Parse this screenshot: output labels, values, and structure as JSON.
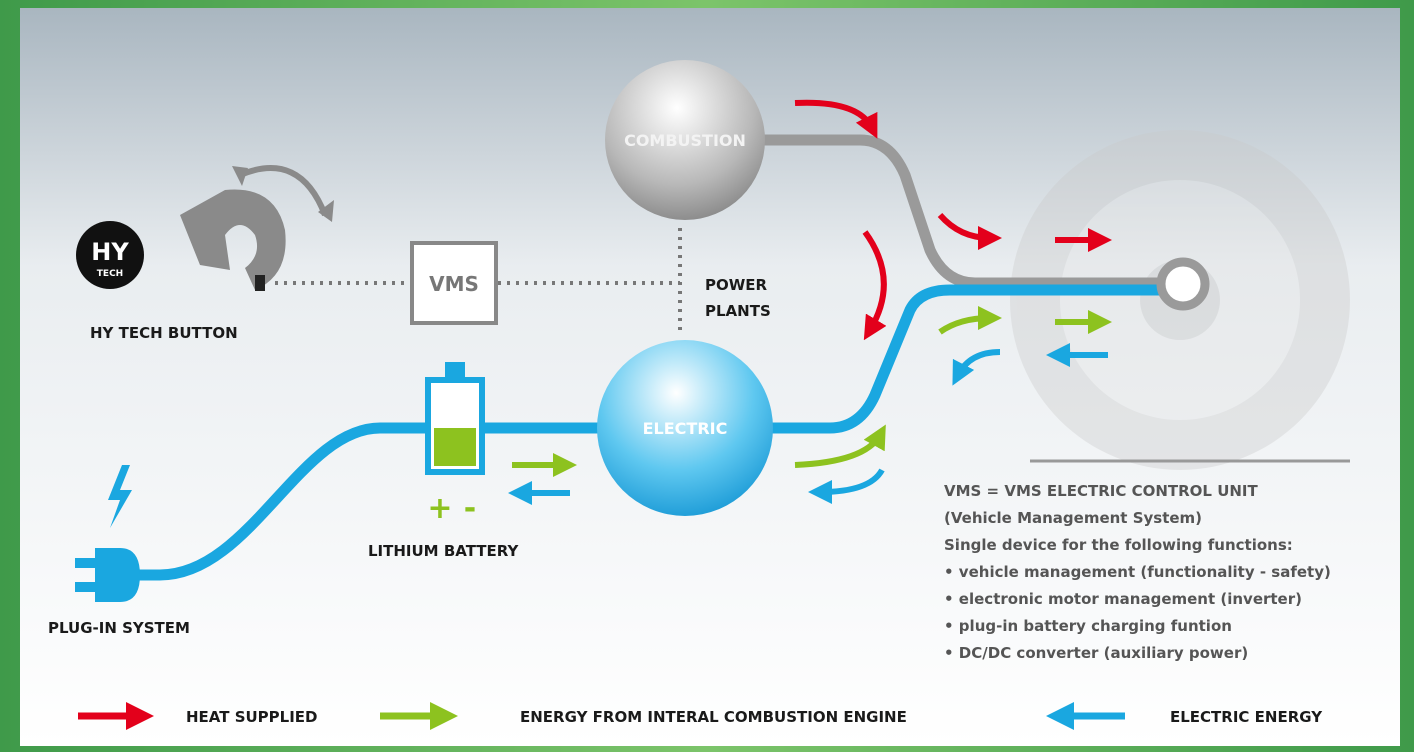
{
  "logo": {
    "top": "HY",
    "bottom": "TECH"
  },
  "labels": {
    "hy_tech_button": "HY TECH BUTTON",
    "vms": "VMS",
    "combustion": "COMBUSTION",
    "power_plants": [
      "POWER",
      "PLANTS"
    ],
    "electric": "ELECTRIC",
    "battery_plus": "+",
    "battery_minus": "-",
    "lithium_battery": "LITHIUM BATTERY",
    "plug_in_system": "PLUG-IN SYSTEM"
  },
  "info": {
    "title": "VMS = VMS ELECTRIC CONTROL UNIT",
    "subtitle": "(Vehicle Management System)",
    "intro": "Single device for the following functions:",
    "items": [
      "• vehicle management (functionality - safety)",
      "• electronic motor management (inverter)",
      "• plug-in battery charging funtion",
      "• DC/DC converter (auxiliary power)"
    ]
  },
  "legend": [
    {
      "label": "HEAT SUPPLIED"
    },
    {
      "label": "ENERGY FROM INTERAL COMBUSTION ENGINE"
    },
    {
      "label": "ELECTRIC ENERGY"
    }
  ]
}
